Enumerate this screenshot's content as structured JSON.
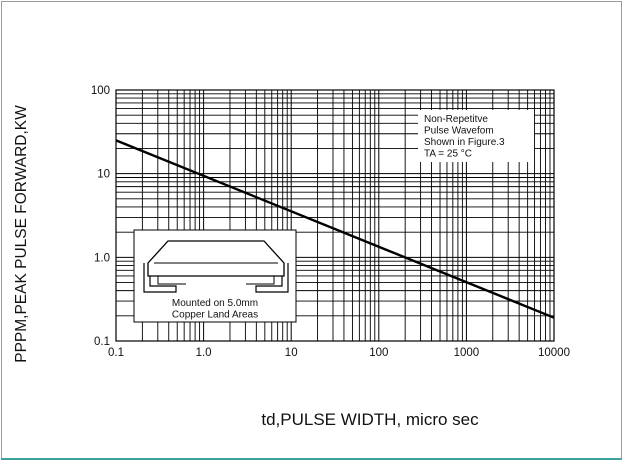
{
  "chart_data": {
    "type": "line",
    "xscale": "log",
    "yscale": "log",
    "xlim": [
      0.1,
      10000
    ],
    "ylim": [
      0.1,
      100
    ],
    "grid": true,
    "xlabel": "td,PULSE WIDTH, micro sec",
    "ylabel": "PPPM,PEAK PULSE FORWARD,KW",
    "xticks": [
      "0.1",
      "1.0",
      "10",
      "100",
      "1000",
      "10000"
    ],
    "yticks": [
      "0.1",
      "1.0",
      "10",
      "100"
    ],
    "series": [
      {
        "x": [
          0.1,
          10000
        ],
        "y": [
          25,
          0.19
        ]
      }
    ],
    "annotations": {
      "conditions": [
        "Non-Repetitve",
        "Pulse Wavefom",
        "Shown in Figure.3",
        "TA = 25 °C"
      ],
      "inset": [
        "Mounted on 5.0mm",
        "Copper Land Areas"
      ]
    }
  }
}
